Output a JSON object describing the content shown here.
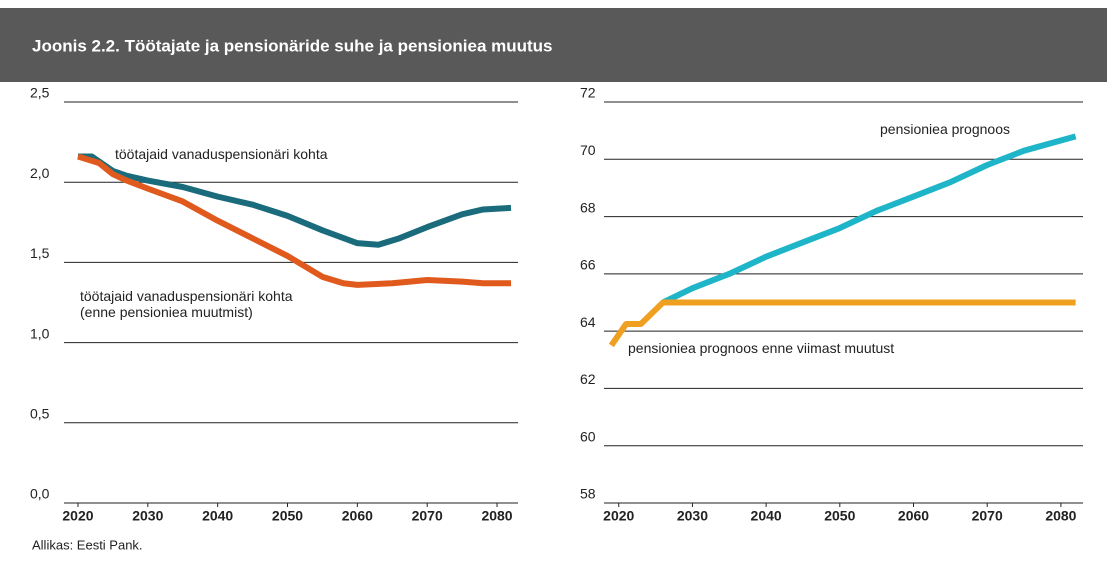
{
  "title": "Joonis 2.2. Töötajate ja pensionäride suhe ja pensioniea muutus",
  "source": "Allikas: Eesti Pank.",
  "chart_data": [
    {
      "type": "line",
      "xlim": [
        2018,
        2083
      ],
      "xticks": [
        2020,
        2030,
        2040,
        2050,
        2060,
        2070,
        2080
      ],
      "ylim": [
        0,
        2.5
      ],
      "yticks": [
        {
          "value": 0,
          "label": "0,0"
        },
        {
          "value": 0.5,
          "label": "0,5"
        },
        {
          "value": 1,
          "label": "1,0"
        },
        {
          "value": 1.5,
          "label": "1,5"
        },
        {
          "value": 2,
          "label": "2,0"
        },
        {
          "value": 2.5,
          "label": "2,5"
        }
      ],
      "grid": true,
      "series": [
        {
          "name": "töötajaid vanaduspensionäri kohta",
          "color": "#1a6b7c",
          "x": [
            2020,
            2022,
            2023,
            2025,
            2027,
            2030,
            2035,
            2040,
            2045,
            2050,
            2055,
            2060,
            2063,
            2066,
            2070,
            2075,
            2078,
            2082
          ],
          "values": [
            2.16,
            2.16,
            2.13,
            2.07,
            2.04,
            2.01,
            1.97,
            1.91,
            1.86,
            1.79,
            1.7,
            1.62,
            1.61,
            1.65,
            1.72,
            1.8,
            1.83,
            1.84
          ]
        },
        {
          "name": "töötajaid vanaduspensionäri kohta\n(enne pensioniea muutmist)",
          "color": "#e05a1e",
          "x": [
            2020,
            2023,
            2025,
            2027,
            2030,
            2035,
            2040,
            2045,
            2050,
            2055,
            2058,
            2060,
            2065,
            2070,
            2075,
            2078,
            2082
          ],
          "values": [
            2.16,
            2.12,
            2.05,
            2.01,
            1.96,
            1.88,
            1.76,
            1.65,
            1.54,
            1.41,
            1.37,
            1.36,
            1.37,
            1.39,
            1.38,
            1.37,
            1.37
          ]
        }
      ]
    },
    {
      "type": "line",
      "xlim": [
        2018,
        2083
      ],
      "xticks": [
        2020,
        2030,
        2040,
        2050,
        2060,
        2070,
        2080
      ],
      "ylim": [
        58,
        72
      ],
      "yticks": [
        58,
        60,
        62,
        64,
        66,
        68,
        70,
        72
      ],
      "grid": true,
      "series": [
        {
          "name": "pensioniea prognoos",
          "color": "#1fb5c9",
          "x": [
            2026,
            2030,
            2035,
            2040,
            2045,
            2050,
            2055,
            2060,
            2065,
            2070,
            2075,
            2082
          ],
          "values": [
            65,
            65.5,
            66,
            66.6,
            67.1,
            67.6,
            68.2,
            68.7,
            69.2,
            69.8,
            70.3,
            70.8
          ]
        },
        {
          "name": "pensioniea prognoos enne viimast muutust",
          "color": "#f0a020",
          "x": [
            2019,
            2021,
            2023,
            2026,
            2082
          ],
          "values": [
            63.5,
            64.25,
            64.25,
            65,
            65
          ]
        }
      ]
    }
  ]
}
